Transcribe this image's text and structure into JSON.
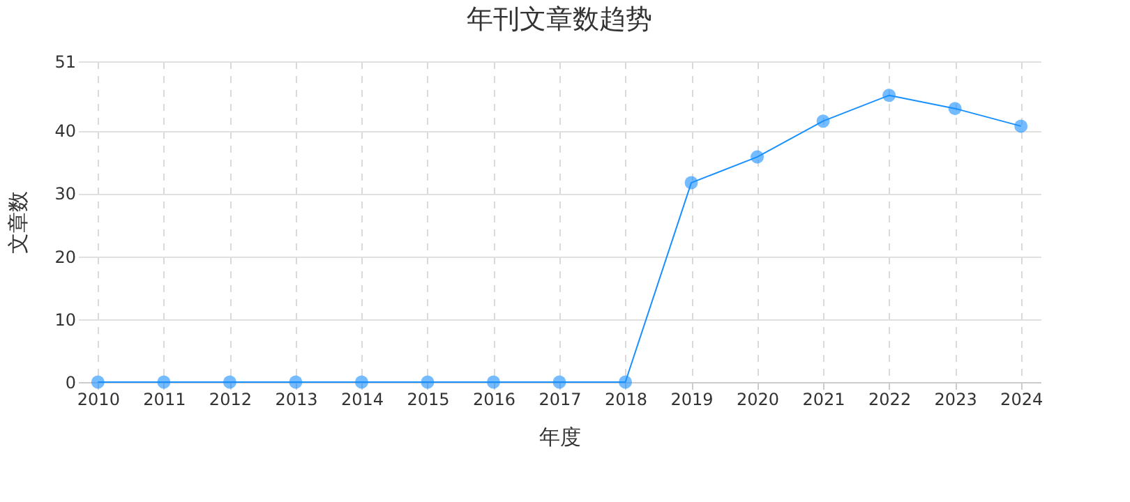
{
  "chart_data": {
    "type": "line",
    "title": "年刊文章数趋势",
    "xlabel": "年度",
    "ylabel": "文章数",
    "x": [
      2010,
      2011,
      2012,
      2013,
      2014,
      2015,
      2016,
      2017,
      2018,
      2019,
      2020,
      2021,
      2022,
      2023,
      2024
    ],
    "series": [
      {
        "color": "#1890ff",
        "values": [
          0,
          0,
          0,
          0,
          0,
          0,
          0,
          0,
          0,
          31.7,
          35.8,
          41.5,
          45.6,
          43.5,
          40.7
        ]
      }
    ],
    "xlim": [
      2009.7,
      2024.3
    ],
    "xticks": [
      2010,
      2011,
      2012,
      2013,
      2014,
      2015,
      2016,
      2017,
      2018,
      2019,
      2020,
      2021,
      2022,
      2023,
      2024
    ],
    "ylim": [
      0,
      51
    ],
    "yticks": [
      0,
      10,
      20,
      30,
      40,
      51
    ],
    "grid": true,
    "marker": "circle",
    "line_style": "solid"
  }
}
